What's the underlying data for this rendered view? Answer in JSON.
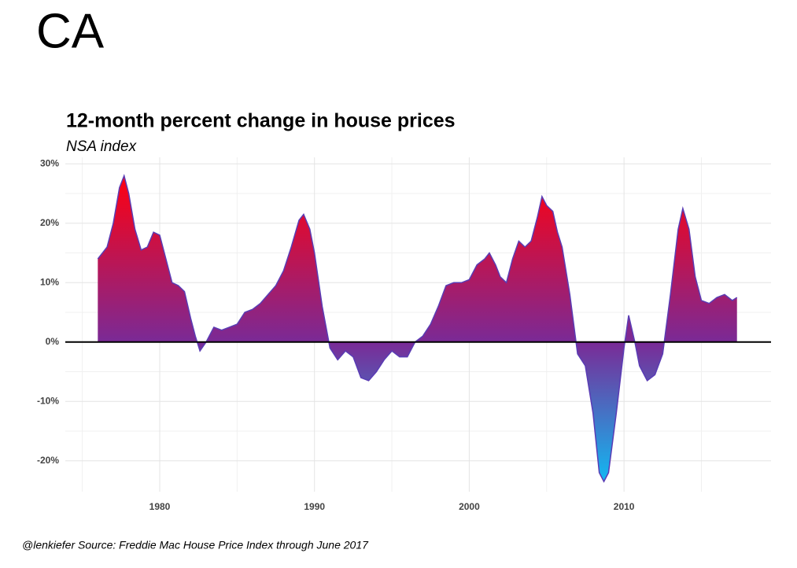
{
  "chart_data": {
    "type": "area",
    "heading": "CA",
    "title": "12-month percent change in house prices",
    "subtitle": "NSA index",
    "caption": "@lenkiefer Source: Freddie Mac House Price Index through June 2017",
    "xlim": [
      1973.9,
      2019.5
    ],
    "ylim": [
      -25.2,
      31.1
    ],
    "xticks": [
      1980,
      1990,
      2000,
      2010
    ],
    "yticks": [
      {
        "value": -20,
        "label": "-20%"
      },
      {
        "value": -10,
        "label": "-10%"
      },
      {
        "value": 0,
        "label": "0%"
      },
      {
        "value": 10,
        "label": "10%"
      },
      {
        "value": 20,
        "label": "20%"
      },
      {
        "value": 30,
        "label": "30%"
      }
    ],
    "grid": true,
    "gradient": [
      "#ff0010",
      "#7a2a96",
      "#12b8f2"
    ],
    "line_color": "#5a3cb4",
    "x": [
      1976.0,
      1976.3,
      1976.6,
      1977.0,
      1977.4,
      1977.7,
      1978.0,
      1978.4,
      1978.8,
      1979.2,
      1979.6,
      1980.0,
      1980.4,
      1980.8,
      1981.2,
      1981.6,
      1982.0,
      1982.3,
      1982.6,
      1983.0,
      1983.5,
      1984.0,
      1984.5,
      1985.0,
      1985.5,
      1986.0,
      1986.5,
      1987.0,
      1987.5,
      1988.0,
      1988.5,
      1989.0,
      1989.3,
      1989.7,
      1990.0,
      1990.5,
      1991.0,
      1991.5,
      1992.0,
      1992.5,
      1993.0,
      1993.5,
      1994.0,
      1994.5,
      1995.0,
      1995.5,
      1996.0,
      1996.5,
      1997.0,
      1997.5,
      1998.0,
      1998.5,
      1999.0,
      1999.5,
      2000.0,
      2000.5,
      2001.0,
      2001.3,
      2001.7,
      2002.0,
      2002.4,
      2002.8,
      2003.2,
      2003.6,
      2004.0,
      2004.4,
      2004.7,
      2005.0,
      2005.4,
      2005.7,
      2006.0,
      2006.5,
      2007.0,
      2007.5,
      2008.0,
      2008.4,
      2008.7,
      2009.0,
      2009.5,
      2010.0,
      2010.3,
      2010.7,
      2011.0,
      2011.5,
      2012.0,
      2012.5,
      2013.0,
      2013.5,
      2013.8,
      2014.2,
      2014.6,
      2015.0,
      2015.5,
      2016.0,
      2016.5,
      2017.0,
      2017.3
    ],
    "values": [
      14,
      15,
      16,
      20,
      26,
      28,
      25,
      19,
      15.5,
      16,
      18.5,
      18,
      14,
      10,
      9.5,
      8.5,
      4,
      1,
      -1.5,
      0,
      2.5,
      2,
      2.5,
      3,
      5,
      5.5,
      6.5,
      8,
      9.5,
      12,
      16,
      20.5,
      21.5,
      19,
      15,
      6,
      -1,
      -3,
      -1.5,
      -2.5,
      -6,
      -6.5,
      -5,
      -3,
      -1.5,
      -2.5,
      -2.5,
      0,
      1,
      3,
      6,
      9.5,
      10,
      10,
      10.5,
      13,
      14,
      15,
      13,
      11,
      10,
      14,
      17,
      16,
      17,
      21,
      24.5,
      23,
      22,
      18.5,
      16,
      8,
      -2,
      -4,
      -12,
      -22,
      -23.5,
      -22,
      -12,
      -1,
      4.5,
      0,
      -4,
      -6.5,
      -5.5,
      -2,
      8,
      19,
      22.5,
      19,
      11,
      7,
      6.5,
      7.5,
      8,
      7,
      7.5
    ]
  }
}
